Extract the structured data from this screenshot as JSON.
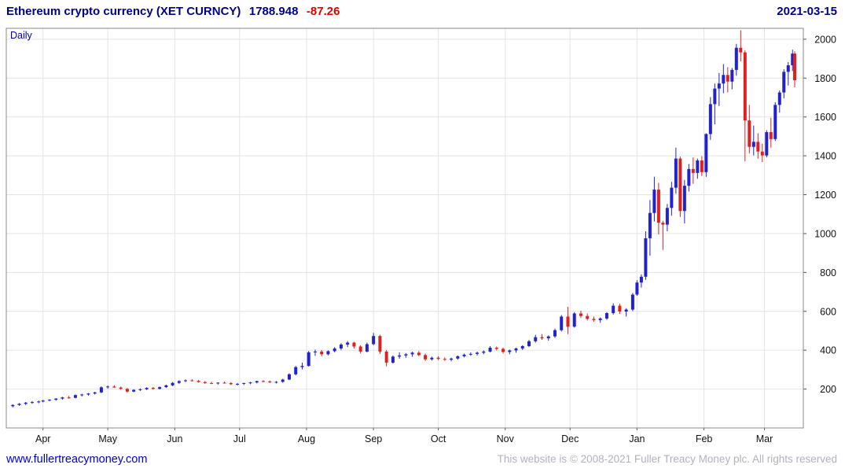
{
  "header": {
    "title": "Ethereum crypto currency  (XET CURNCY)",
    "price": "1788.948",
    "change": "-87.26",
    "date": "2021-03-15"
  },
  "chart_data": {
    "type": "candlestick",
    "title": "Ethereum crypto currency (XET CURNCY)",
    "interval": "Daily",
    "last_price": 1788.948,
    "change": -87.26,
    "date": "2021-03-15",
    "ylim": [
      0,
      2056
    ],
    "xlim": [
      -3,
      366
    ],
    "grid": true,
    "legend": "none",
    "y_ticks": [
      200,
      400,
      600,
      800,
      1000,
      1200,
      1400,
      1600,
      1800,
      2000
    ],
    "x_ticks": [
      {
        "label": "Apr",
        "day": 14
      },
      {
        "label": "May",
        "day": 44
      },
      {
        "label": "Jun",
        "day": 75
      },
      {
        "label": "Jul",
        "day": 105
      },
      {
        "label": "Aug",
        "day": 136
      },
      {
        "label": "Sep",
        "day": 167
      },
      {
        "label": "Oct",
        "day": 197
      },
      {
        "label": "Nov",
        "day": 228
      },
      {
        "label": "Dec",
        "day": 258
      },
      {
        "label": "Jan",
        "day": 289
      },
      {
        "label": "Feb",
        "day": 320
      },
      {
        "label": "Mar",
        "day": 348
      }
    ],
    "up_color": "#2222cc",
    "down_color": "#e02020",
    "grid_color": "#e4e4e4",
    "border_color": "#888888",
    "axis_text_color": "#111111",
    "series": [
      {
        "name": "XET CURNCY",
        "ohlc": [
          [
            0,
            112,
            122,
            106,
            118
          ],
          [
            3,
            118,
            128,
            114,
            124
          ],
          [
            6,
            124,
            134,
            118,
            130
          ],
          [
            9,
            130,
            138,
            124,
            133
          ],
          [
            12,
            133,
            141,
            127,
            136
          ],
          [
            14,
            136,
            144,
            132,
            141
          ],
          [
            17,
            141,
            148,
            137,
            145
          ],
          [
            20,
            145,
            153,
            140,
            151
          ],
          [
            23,
            151,
            160,
            146,
            157
          ],
          [
            26,
            157,
            165,
            150,
            155
          ],
          [
            29,
            155,
            172,
            152,
            169
          ],
          [
            32,
            169,
            176,
            162,
            172
          ],
          [
            35,
            172,
            180,
            166,
            177
          ],
          [
            38,
            177,
            186,
            172,
            183
          ],
          [
            41,
            183,
            214,
            179,
            209
          ],
          [
            44,
            209,
            218,
            202,
            213
          ],
          [
            47,
            213,
            220,
            206,
            208
          ],
          [
            50,
            208,
            213,
            197,
            201
          ],
          [
            53,
            201,
            206,
            182,
            187
          ],
          [
            56,
            187,
            199,
            184,
            196
          ],
          [
            59,
            196,
            203,
            190,
            199
          ],
          [
            62,
            199,
            209,
            195,
            206
          ],
          [
            65,
            206,
            211,
            197,
            201
          ],
          [
            68,
            201,
            213,
            198,
            210
          ],
          [
            71,
            210,
            223,
            206,
            219
          ],
          [
            74,
            219,
            236,
            215,
            232
          ],
          [
            77,
            232,
            245,
            227,
            241
          ],
          [
            80,
            241,
            249,
            236,
            245
          ],
          [
            83,
            245,
            251,
            239,
            242
          ],
          [
            86,
            242,
            247,
            233,
            236
          ],
          [
            89,
            236,
            241,
            227,
            231
          ],
          [
            92,
            231,
            237,
            225,
            229
          ],
          [
            95,
            229,
            235,
            223,
            233
          ],
          [
            98,
            233,
            239,
            228,
            231
          ],
          [
            101,
            231,
            235,
            221,
            225
          ],
          [
            104,
            225,
            231,
            219,
            227
          ],
          [
            107,
            227,
            233,
            221,
            231
          ],
          [
            110,
            231,
            237,
            225,
            234
          ],
          [
            113,
            234,
            243,
            229,
            241
          ],
          [
            116,
            241,
            246,
            235,
            239
          ],
          [
            119,
            239,
            244,
            231,
            235
          ],
          [
            122,
            235,
            241,
            229,
            237
          ],
          [
            125,
            237,
            253,
            233,
            249
          ],
          [
            128,
            249,
            281,
            246,
            276
          ],
          [
            131,
            276,
            319,
            271,
            313
          ],
          [
            134,
            313,
            336,
            301,
            319
          ],
          [
            137,
            319,
            396,
            316,
            389
          ],
          [
            140,
            389,
            403,
            371,
            393
          ],
          [
            143,
            393,
            401,
            369,
            379
          ],
          [
            146,
            379,
            399,
            373,
            395
          ],
          [
            149,
            395,
            416,
            389,
            409
          ],
          [
            152,
            409,
            436,
            401,
            429
          ],
          [
            155,
            429,
            447,
            416,
            439
          ],
          [
            158,
            439,
            443,
            409,
            419
          ],
          [
            161,
            419,
            425,
            383,
            393
          ],
          [
            164,
            393,
            439,
            389,
            431
          ],
          [
            167,
            431,
            489,
            426,
            473
          ],
          [
            170,
            473,
            479,
            381,
            393
          ],
          [
            173,
            393,
            401,
            317,
            336
          ],
          [
            176,
            336,
            373,
            331,
            367
          ],
          [
            179,
            367,
            389,
            356,
            373
          ],
          [
            182,
            373,
            385,
            361,
            379
          ],
          [
            185,
            379,
            393,
            366,
            387
          ],
          [
            188,
            387,
            396,
            369,
            375
          ],
          [
            191,
            375,
            383,
            345,
            353
          ],
          [
            194,
            353,
            367,
            346,
            361
          ],
          [
            197,
            361,
            369,
            349,
            355
          ],
          [
            200,
            355,
            363,
            345,
            351
          ],
          [
            203,
            351,
            361,
            343,
            357
          ],
          [
            206,
            357,
            373,
            351,
            369
          ],
          [
            209,
            369,
            383,
            363,
            377
          ],
          [
            212,
            377,
            389,
            371,
            381
          ],
          [
            215,
            381,
            393,
            373,
            387
          ],
          [
            218,
            387,
            399,
            379,
            393
          ],
          [
            221,
            393,
            421,
            389,
            413
          ],
          [
            224,
            413,
            419,
            399,
            407
          ],
          [
            227,
            407,
            413,
            383,
            391
          ],
          [
            230,
            391,
            403,
            379,
            399
          ],
          [
            233,
            399,
            413,
            387,
            409
          ],
          [
            236,
            409,
            426,
            401,
            421
          ],
          [
            239,
            421,
            453,
            416,
            446
          ],
          [
            242,
            446,
            479,
            439,
            467
          ],
          [
            245,
            467,
            483,
            453,
            461
          ],
          [
            248,
            461,
            476,
            449,
            471
          ],
          [
            251,
            471,
            511,
            463,
            503
          ],
          [
            254,
            503,
            581,
            496,
            573
          ],
          [
            257,
            573,
            623,
            483,
            521
          ],
          [
            260,
            521,
            596,
            516,
            589
          ],
          [
            263,
            589,
            603,
            566,
            576
          ],
          [
            266,
            576,
            589,
            553,
            561
          ],
          [
            269,
            561,
            573,
            546,
            555
          ],
          [
            272,
            555,
            569,
            541,
            563
          ],
          [
            275,
            563,
            596,
            556,
            591
          ],
          [
            278,
            591,
            641,
            583,
            629
          ],
          [
            281,
            629,
            639,
            586,
            599
          ],
          [
            284,
            599,
            616,
            573,
            609
          ],
          [
            287,
            609,
            695,
            601,
            686
          ],
          [
            289,
            686,
            760,
            680,
            748
          ],
          [
            291,
            748,
            790,
            722,
            778
          ],
          [
            293,
            778,
            1012,
            762,
            976
          ],
          [
            295,
            976,
            1172,
            886,
            1106
          ],
          [
            297,
            1106,
            1292,
            1062,
            1226
          ],
          [
            299,
            1226,
            1261,
            996,
            1056
          ],
          [
            301,
            1056,
            1066,
            916,
            1046
          ],
          [
            303,
            1046,
            1152,
            1012,
            1132
          ],
          [
            305,
            1132,
            1266,
            1092,
            1236
          ],
          [
            307,
            1236,
            1442,
            1205,
            1386
          ],
          [
            309,
            1386,
            1396,
            1086,
            1116
          ],
          [
            311,
            1116,
            1276,
            1052,
            1246
          ],
          [
            313,
            1246,
            1358,
            1216,
            1332
          ],
          [
            315,
            1332,
            1392,
            1256,
            1312
          ],
          [
            317,
            1312,
            1386,
            1282,
            1376
          ],
          [
            319,
            1376,
            1398,
            1296,
            1316
          ],
          [
            321,
            1316,
            1516,
            1292,
            1512
          ],
          [
            323,
            1512,
            1702,
            1482,
            1666
          ],
          [
            325,
            1666,
            1772,
            1562,
            1746
          ],
          [
            327,
            1746,
            1826,
            1656,
            1772
          ],
          [
            329,
            1772,
            1872,
            1722,
            1816
          ],
          [
            331,
            1816,
            1856,
            1726,
            1782
          ],
          [
            333,
            1782,
            1852,
            1742,
            1842
          ],
          [
            335,
            1842,
            1976,
            1812,
            1956
          ],
          [
            337,
            1956,
            2046,
            1886,
            1932
          ],
          [
            339,
            1932,
            1942,
            1372,
            1582
          ],
          [
            341,
            1582,
            1662,
            1412,
            1446
          ],
          [
            343,
            1446,
            1556,
            1402,
            1472
          ],
          [
            345,
            1472,
            1516,
            1386,
            1422
          ],
          [
            347,
            1422,
            1462,
            1368,
            1402
          ],
          [
            349,
            1402,
            1532,
            1392,
            1522
          ],
          [
            351,
            1522,
            1596,
            1442,
            1486
          ],
          [
            353,
            1486,
            1676,
            1476,
            1662
          ],
          [
            355,
            1662,
            1736,
            1622,
            1726
          ],
          [
            357,
            1726,
            1846,
            1696,
            1832
          ],
          [
            359,
            1832,
            1882,
            1762,
            1866
          ],
          [
            361,
            1866,
            1946,
            1836,
            1926
          ],
          [
            362,
            1926,
            1938,
            1752,
            1789
          ]
        ]
      }
    ]
  },
  "footer": {
    "link": "www.fullertreacymoney.com",
    "copyright": "This website is © 2008-2021 Fuller Treacy Money plc. All rights reserved"
  }
}
